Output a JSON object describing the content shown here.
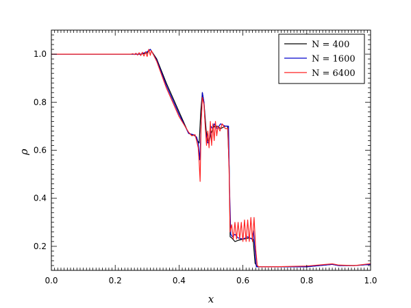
{
  "chart_data": {
    "type": "line",
    "title": "",
    "xlabel": "x",
    "ylabel": "ρ",
    "xlim": [
      0.0,
      1.0
    ],
    "ylim": [
      0.1,
      1.1
    ],
    "grid": false,
    "legend_position": "top-right",
    "x_ticks": [
      "0.0",
      "0.2",
      "0.4",
      "0.6",
      "0.8",
      "1.0"
    ],
    "y_ticks": [
      "0.2",
      "0.4",
      "0.6",
      "0.8",
      "1.0"
    ],
    "x_tick_values": [
      0.0,
      0.2,
      0.4,
      0.6,
      0.8,
      1.0
    ],
    "y_tick_values": [
      0.2,
      0.4,
      0.6,
      0.8,
      1.0
    ],
    "series": [
      {
        "name": "N = 400",
        "color": "#000000",
        "points": [
          [
            0.0,
            1.0
          ],
          [
            0.28,
            1.0
          ],
          [
            0.3,
            1.005
          ],
          [
            0.31,
            1.02
          ],
          [
            0.33,
            0.98
          ],
          [
            0.36,
            0.88
          ],
          [
            0.4,
            0.76
          ],
          [
            0.43,
            0.67
          ],
          [
            0.45,
            0.66
          ],
          [
            0.458,
            0.64
          ],
          [
            0.463,
            0.63
          ],
          [
            0.468,
            0.76
          ],
          [
            0.473,
            0.84
          ],
          [
            0.478,
            0.8
          ],
          [
            0.485,
            0.68
          ],
          [
            0.49,
            0.64
          ],
          [
            0.495,
            0.64
          ],
          [
            0.5,
            0.67
          ],
          [
            0.51,
            0.7
          ],
          [
            0.52,
            0.7
          ],
          [
            0.53,
            0.69
          ],
          [
            0.545,
            0.7
          ],
          [
            0.552,
            0.7
          ],
          [
            0.557,
            0.53
          ],
          [
            0.56,
            0.24
          ],
          [
            0.565,
            0.235
          ],
          [
            0.575,
            0.22
          ],
          [
            0.585,
            0.225
          ],
          [
            0.6,
            0.23
          ],
          [
            0.62,
            0.235
          ],
          [
            0.632,
            0.23
          ],
          [
            0.638,
            0.13
          ],
          [
            0.645,
            0.115
          ],
          [
            0.7,
            0.115
          ],
          [
            0.8,
            0.115
          ],
          [
            0.88,
            0.125
          ],
          [
            0.9,
            0.12
          ],
          [
            0.95,
            0.12
          ],
          [
            1.0,
            0.125
          ]
        ]
      },
      {
        "name": "N = 1600",
        "color": "#0000cc",
        "points": [
          [
            0.0,
            1.0
          ],
          [
            0.28,
            1.0
          ],
          [
            0.3,
            1.01
          ],
          [
            0.31,
            1.02
          ],
          [
            0.33,
            0.975
          ],
          [
            0.36,
            0.87
          ],
          [
            0.4,
            0.75
          ],
          [
            0.43,
            0.67
          ],
          [
            0.445,
            0.665
          ],
          [
            0.455,
            0.655
          ],
          [
            0.46,
            0.63
          ],
          [
            0.465,
            0.56
          ],
          [
            0.468,
            0.66
          ],
          [
            0.473,
            0.84
          ],
          [
            0.478,
            0.8
          ],
          [
            0.483,
            0.68
          ],
          [
            0.49,
            0.63
          ],
          [
            0.495,
            0.64
          ],
          [
            0.5,
            0.7
          ],
          [
            0.505,
            0.69
          ],
          [
            0.51,
            0.71
          ],
          [
            0.52,
            0.69
          ],
          [
            0.53,
            0.71
          ],
          [
            0.545,
            0.7
          ],
          [
            0.555,
            0.7
          ],
          [
            0.558,
            0.45
          ],
          [
            0.562,
            0.25
          ],
          [
            0.567,
            0.24
          ],
          [
            0.575,
            0.25
          ],
          [
            0.585,
            0.235
          ],
          [
            0.6,
            0.23
          ],
          [
            0.615,
            0.24
          ],
          [
            0.628,
            0.23
          ],
          [
            0.633,
            0.265
          ],
          [
            0.637,
            0.2
          ],
          [
            0.642,
            0.115
          ],
          [
            0.65,
            0.115
          ],
          [
            0.7,
            0.115
          ],
          [
            0.8,
            0.115
          ],
          [
            0.88,
            0.125
          ],
          [
            0.9,
            0.12
          ],
          [
            0.95,
            0.12
          ],
          [
            1.0,
            0.125
          ]
        ]
      },
      {
        "name": "N = 6400",
        "color": "#ff2020",
        "points": [
          [
            0.0,
            1.0
          ],
          [
            0.23,
            1.0
          ],
          [
            0.25,
            1.0
          ],
          [
            0.255,
            1.002
          ],
          [
            0.26,
            0.998
          ],
          [
            0.265,
            1.004
          ],
          [
            0.27,
            0.996
          ],
          [
            0.275,
            1.006
          ],
          [
            0.28,
            0.994
          ],
          [
            0.285,
            1.008
          ],
          [
            0.29,
            0.992
          ],
          [
            0.295,
            1.01
          ],
          [
            0.3,
            0.99
          ],
          [
            0.305,
            1.02
          ],
          [
            0.31,
            0.995
          ],
          [
            0.313,
            1.015
          ],
          [
            0.33,
            0.97
          ],
          [
            0.36,
            0.86
          ],
          [
            0.4,
            0.74
          ],
          [
            0.43,
            0.675
          ],
          [
            0.44,
            0.66
          ],
          [
            0.45,
            0.665
          ],
          [
            0.455,
            0.64
          ],
          [
            0.46,
            0.61
          ],
          [
            0.463,
            0.55
          ],
          [
            0.466,
            0.47
          ],
          [
            0.469,
            0.7
          ],
          [
            0.473,
            0.82
          ],
          [
            0.478,
            0.79
          ],
          [
            0.482,
            0.7
          ],
          [
            0.486,
            0.62
          ],
          [
            0.49,
            0.68
          ],
          [
            0.494,
            0.61
          ],
          [
            0.498,
            0.72
          ],
          [
            0.502,
            0.62
          ],
          [
            0.506,
            0.71
          ],
          [
            0.51,
            0.64
          ],
          [
            0.514,
            0.72
          ],
          [
            0.518,
            0.66
          ],
          [
            0.522,
            0.7
          ],
          [
            0.528,
            0.68
          ],
          [
            0.535,
            0.71
          ],
          [
            0.545,
            0.69
          ],
          [
            0.553,
            0.69
          ],
          [
            0.557,
            0.5
          ],
          [
            0.56,
            0.26
          ],
          [
            0.565,
            0.29
          ],
          [
            0.57,
            0.23
          ],
          [
            0.575,
            0.3
          ],
          [
            0.58,
            0.23
          ],
          [
            0.585,
            0.3
          ],
          [
            0.59,
            0.23
          ],
          [
            0.595,
            0.3
          ],
          [
            0.6,
            0.22
          ],
          [
            0.605,
            0.31
          ],
          [
            0.61,
            0.22
          ],
          [
            0.615,
            0.31
          ],
          [
            0.62,
            0.22
          ],
          [
            0.625,
            0.32
          ],
          [
            0.63,
            0.22
          ],
          [
            0.635,
            0.32
          ],
          [
            0.64,
            0.19
          ],
          [
            0.645,
            0.12
          ],
          [
            0.65,
            0.115
          ],
          [
            0.7,
            0.115
          ],
          [
            0.8,
            0.118
          ],
          [
            0.88,
            0.127
          ],
          [
            0.9,
            0.122
          ],
          [
            0.95,
            0.12
          ],
          [
            1.0,
            0.128
          ]
        ]
      }
    ]
  }
}
